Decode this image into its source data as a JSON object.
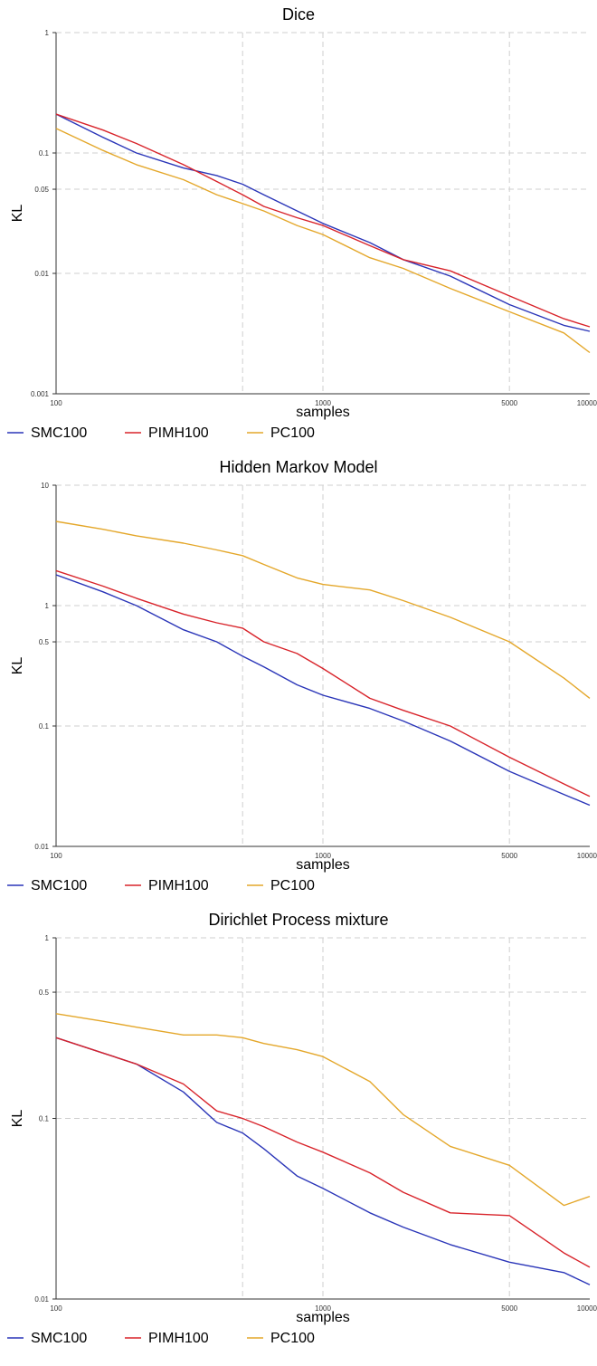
{
  "colors": {
    "SMC100": "#2a35b8",
    "PIMH100": "#d8232a",
    "PC100": "#e4a72a",
    "grid": "#cfcfcf"
  },
  "chart_data": [
    {
      "type": "line",
      "title": "Dice",
      "xlabel": "samples",
      "ylabel": "KL",
      "xscale": "log",
      "yscale": "log",
      "xlim": [
        100,
        10000
      ],
      "ylim": [
        0.001,
        1
      ],
      "xticks": [
        100,
        1000,
        5000,
        10000
      ],
      "xtick_labels": [
        "100",
        "1000",
        "5000",
        "10000"
      ],
      "yticks": [
        0.001,
        0.01,
        0.05,
        0.1,
        1
      ],
      "ytick_labels": [
        "0.001",
        "0.01",
        "0.05",
        "0.1",
        "1"
      ],
      "grid": true,
      "legend": "bottom-left",
      "series": [
        {
          "name": "SMC100",
          "x": [
            100,
            150,
            200,
            300,
            400,
            500,
            600,
            800,
            1000,
            1500,
            2000,
            3000,
            5000,
            8000,
            10000
          ],
          "y": [
            0.21,
            0.135,
            0.1,
            0.075,
            0.065,
            0.055,
            0.045,
            0.033,
            0.026,
            0.018,
            0.013,
            0.0095,
            0.0055,
            0.0037,
            0.0033
          ]
        },
        {
          "name": "PIMH100",
          "x": [
            100,
            150,
            200,
            300,
            400,
            500,
            600,
            800,
            1000,
            1500,
            2000,
            3000,
            5000,
            8000,
            10000
          ],
          "y": [
            0.21,
            0.155,
            0.12,
            0.08,
            0.058,
            0.045,
            0.036,
            0.029,
            0.025,
            0.017,
            0.013,
            0.0105,
            0.0065,
            0.0042,
            0.0036
          ]
        },
        {
          "name": "PC100",
          "x": [
            100,
            150,
            200,
            300,
            400,
            500,
            600,
            800,
            1000,
            1500,
            2000,
            3000,
            5000,
            8000,
            10000
          ],
          "y": [
            0.16,
            0.105,
            0.08,
            0.06,
            0.045,
            0.038,
            0.033,
            0.025,
            0.021,
            0.0135,
            0.011,
            0.0075,
            0.0048,
            0.0032,
            0.0022
          ]
        }
      ]
    },
    {
      "type": "line",
      "title": "Hidden Markov Model",
      "xlabel": "samples",
      "ylabel": "KL",
      "xscale": "log",
      "yscale": "log",
      "xlim": [
        100,
        10000
      ],
      "ylim": [
        0.01,
        10
      ],
      "xticks": [
        100,
        1000,
        5000,
        10000
      ],
      "xtick_labels": [
        "100",
        "1000",
        "5000",
        "10000"
      ],
      "yticks": [
        0.01,
        0.1,
        0.5,
        1,
        10
      ],
      "ytick_labels": [
        "0.01",
        "0.1",
        "0.5",
        "1",
        "10"
      ],
      "grid": true,
      "legend": "bottom-left",
      "series": [
        {
          "name": "SMC100",
          "x": [
            100,
            150,
            200,
            300,
            400,
            500,
            600,
            800,
            1000,
            1500,
            2000,
            3000,
            5000,
            8000,
            10000
          ],
          "y": [
            1.8,
            1.3,
            1.0,
            0.63,
            0.5,
            0.38,
            0.31,
            0.22,
            0.18,
            0.14,
            0.11,
            0.075,
            0.042,
            0.027,
            0.022
          ]
        },
        {
          "name": "PIMH100",
          "x": [
            100,
            150,
            200,
            300,
            400,
            500,
            600,
            800,
            1000,
            1500,
            2000,
            3000,
            5000,
            8000,
            10000
          ],
          "y": [
            1.95,
            1.45,
            1.15,
            0.85,
            0.72,
            0.65,
            0.5,
            0.4,
            0.3,
            0.17,
            0.135,
            0.1,
            0.055,
            0.033,
            0.026
          ]
        },
        {
          "name": "PC100",
          "x": [
            100,
            150,
            200,
            300,
            400,
            500,
            600,
            800,
            1000,
            1500,
            2000,
            3000,
            5000,
            8000,
            10000
          ],
          "y": [
            5.0,
            4.3,
            3.8,
            3.3,
            2.9,
            2.6,
            2.2,
            1.7,
            1.5,
            1.35,
            1.1,
            0.8,
            0.5,
            0.25,
            0.17
          ]
        }
      ]
    },
    {
      "type": "line",
      "title": "Dirichlet Process mixture",
      "xlabel": "samples",
      "ylabel": "KL",
      "xscale": "log",
      "yscale": "log",
      "xlim": [
        100,
        10000
      ],
      "ylim": [
        0.01,
        1
      ],
      "xticks": [
        100,
        1000,
        5000,
        10000
      ],
      "xtick_labels": [
        "100",
        "1000",
        "5000",
        "10000"
      ],
      "yticks": [
        0.01,
        0.1,
        0.5,
        1
      ],
      "ytick_labels": [
        "0.01",
        "0.1",
        "0.5",
        "1"
      ],
      "grid": true,
      "legend": "bottom-left",
      "series": [
        {
          "name": "SMC100",
          "x": [
            100,
            150,
            200,
            300,
            400,
            500,
            600,
            800,
            1000,
            1500,
            2000,
            3000,
            5000,
            8000,
            10000
          ],
          "y": [
            0.28,
            0.23,
            0.2,
            0.14,
            0.095,
            0.083,
            0.068,
            0.048,
            0.041,
            0.03,
            0.025,
            0.02,
            0.016,
            0.014,
            0.012
          ]
        },
        {
          "name": "PIMH100",
          "x": [
            100,
            150,
            200,
            300,
            400,
            500,
            600,
            800,
            1000,
            1500,
            2000,
            3000,
            5000,
            8000,
            10000
          ],
          "y": [
            0.28,
            0.23,
            0.2,
            0.155,
            0.11,
            0.1,
            0.09,
            0.074,
            0.065,
            0.05,
            0.039,
            0.03,
            0.029,
            0.018,
            0.015
          ]
        },
        {
          "name": "PC100",
          "x": [
            100,
            150,
            200,
            300,
            400,
            500,
            600,
            800,
            1000,
            1500,
            2000,
            3000,
            5000,
            8000,
            10000
          ],
          "y": [
            0.38,
            0.345,
            0.32,
            0.29,
            0.29,
            0.28,
            0.26,
            0.24,
            0.22,
            0.16,
            0.105,
            0.07,
            0.055,
            0.033,
            0.037
          ]
        }
      ]
    }
  ]
}
